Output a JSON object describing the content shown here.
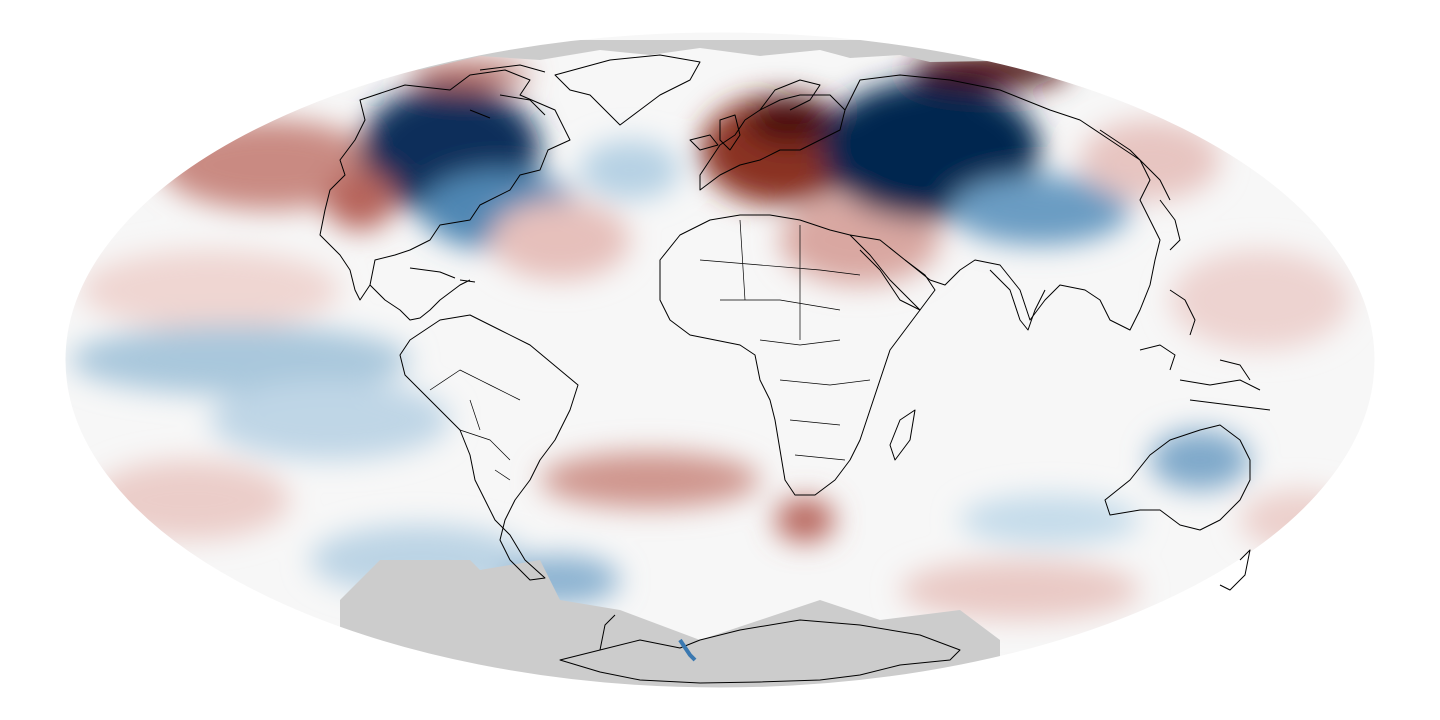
{
  "map": {
    "projection": "mollweide",
    "colors": {
      "no_data": "#cccccc",
      "neutral": "#ffffff",
      "warm_strong": "#4a0f08",
      "warm_mid": "#a8473d",
      "warm_light": "#e9c9c5",
      "cool_light": "#c9dfec",
      "cool_mid": "#5b92bb",
      "cool_strong": "#06264f",
      "coastline": "#000000"
    },
    "legend": null
  }
}
